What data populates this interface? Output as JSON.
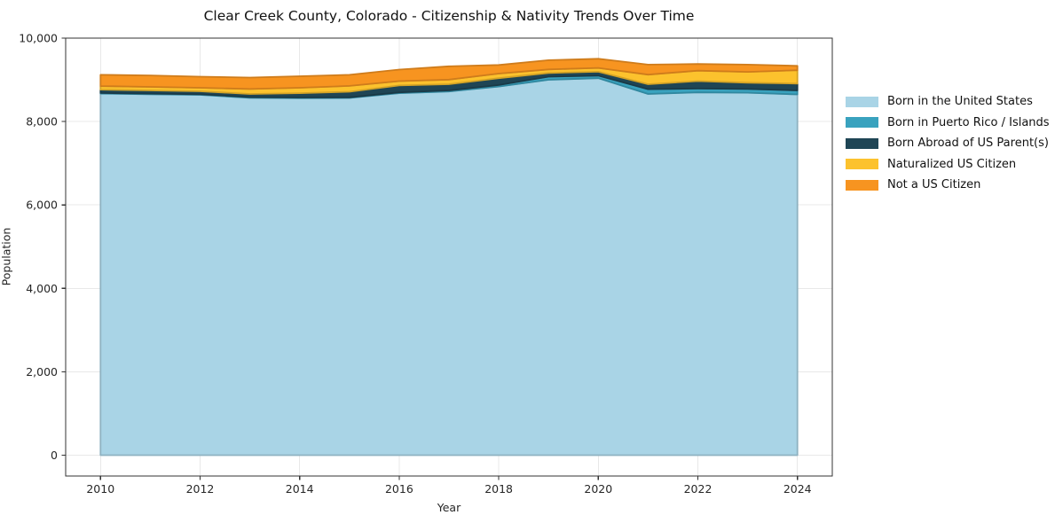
{
  "title": "Clear Creek County, Colorado - Citizenship & Nativity Trends Over Time",
  "chart_data": {
    "type": "area",
    "stacked": true,
    "title": "Clear Creek County, Colorado - Citizenship & Nativity Trends Over Time",
    "xlabel": "Year",
    "ylabel": "Population",
    "x": [
      2010,
      2011,
      2012,
      2013,
      2014,
      2015,
      2016,
      2017,
      2018,
      2019,
      2020,
      2021,
      2022,
      2023,
      2024
    ],
    "series": [
      {
        "name": "Born in the United States",
        "color": "#A9D4E6",
        "values": [
          8670,
          8655,
          8640,
          8570,
          8560,
          8565,
          8680,
          8720,
          8840,
          9000,
          9040,
          8660,
          8700,
          8690,
          8650
        ]
      },
      {
        "name": "Born in Puerto Rico / Islands",
        "color": "#39A2BE",
        "values": [
          15,
          15,
          15,
          15,
          15,
          15,
          20,
          25,
          35,
          75,
          60,
          115,
          90,
          90,
          95
        ]
      },
      {
        "name": "Born Abroad of US Parent(s)",
        "color": "#1F4555",
        "values": [
          80,
          75,
          70,
          75,
          105,
          135,
          165,
          150,
          165,
          90,
          95,
          120,
          180,
          150,
          165
        ]
      },
      {
        "name": "Naturalized US Citizen",
        "color": "#FCC22D",
        "values": [
          85,
          85,
          85,
          120,
          130,
          140,
          105,
          110,
          110,
          85,
          90,
          230,
          250,
          260,
          320
        ]
      },
      {
        "name": "Not a US Citizen",
        "color": "#F79420",
        "values": [
          270,
          275,
          265,
          275,
          275,
          265,
          275,
          320,
          205,
          220,
          220,
          240,
          160,
          175,
          105
        ]
      }
    ],
    "x_ticks": [
      "2010",
      "2012",
      "2014",
      "2016",
      "2018",
      "2020",
      "2022",
      "2024"
    ],
    "y_ticks": [
      "0",
      "2,000",
      "4,000",
      "6,000",
      "8,000",
      "10,000"
    ],
    "xlim": [
      2009.3,
      2024.7
    ],
    "ylim": [
      -500,
      10000
    ],
    "grid": true,
    "grid_color": "#e8e8e8",
    "legend_position": "right"
  }
}
